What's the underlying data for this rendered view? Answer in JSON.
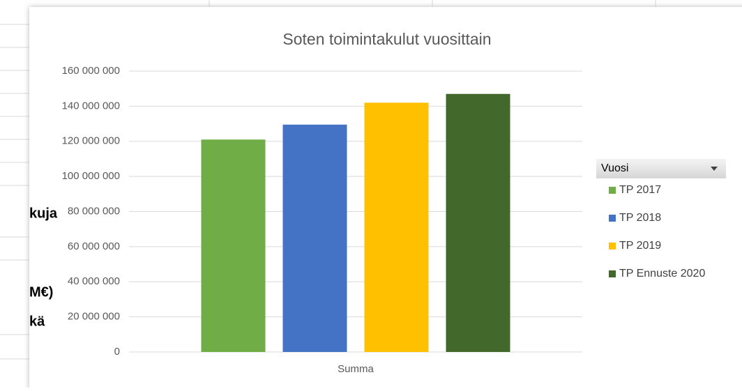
{
  "chart_data": {
    "type": "bar",
    "title": "Soten toimintakulut vuosittain",
    "categories": [
      "Summa"
    ],
    "legend_title": "Vuosi",
    "series": [
      {
        "name": "TP 2017",
        "color": "#70ad47",
        "values": [
          121000000
        ]
      },
      {
        "name": "TP 2018",
        "color": "#4472c4",
        "values": [
          129500000
        ]
      },
      {
        "name": "TP 2019",
        "color": "#ffc000",
        "values": [
          142000000
        ]
      },
      {
        "name": "TP Ennuste 2020",
        "color": "#43682b",
        "values": [
          147000000
        ]
      }
    ],
    "ylim": [
      0,
      160000000
    ],
    "yticks": [
      0,
      {
        "value": 20000000,
        "label": "20 000 000"
      },
      {
        "value": 40000000,
        "label": "40 000 000"
      },
      {
        "value": 60000000,
        "label": "60 000 000"
      },
      {
        "value": 80000000,
        "label": "80 000 000"
      },
      {
        "value": 100000000,
        "label": "100 000 000"
      },
      {
        "value": 120000000,
        "label": "120 000 000"
      },
      {
        "value": 140000000,
        "label": "140 000 000"
      },
      {
        "value": 160000000,
        "label": "160 000 000"
      }
    ],
    "grid": true,
    "legend": "right"
  },
  "sheet_fragments": [
    "kuja",
    "M€)",
    "kä"
  ]
}
